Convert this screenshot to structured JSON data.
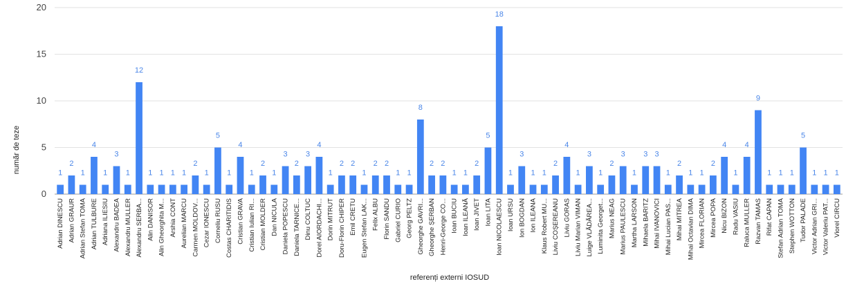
{
  "chart_data": {
    "type": "bar",
    "title": "",
    "xlabel": "referenți externi IOSUD",
    "ylabel": "număr de teze",
    "ylim": [
      0,
      20
    ],
    "yticks": [
      0,
      5,
      10,
      15,
      20
    ],
    "grid": true,
    "legend": "none",
    "bar_color": "#4285f4",
    "label_color": "#4a86e8",
    "categories": [
      "Adrian DINESCU",
      "Adrian GRAUR",
      "Adrian Stefan TOMA",
      "Adrian TULBURE",
      "Adriana ILIESIU",
      "Alexandru BADEA",
      "Alexandru MULLER",
      "Alexandru SERBA...",
      "Alin DANISOR",
      "Alin Gheorghita M...",
      "Arshia CONT",
      "Aurelian MARCU",
      "Carmen MOLDOV...",
      "Cezar IONESCU",
      "Corneliu RUSU",
      "Costas CHARITIDIS",
      "Cristian GRAVA",
      "Cristian Iulian RI...",
      "Cristian MOLDER",
      "Dan NICULA",
      "Daniela POPESCU",
      "Daniela TARNICE...",
      "Dinu COLTUC",
      "Dorel AIORDACHI...",
      "Dorin MITRUT",
      "Doru-Florin CHIPER",
      "Emil CRETU",
      "Eugen Stefan LAK...",
      "Felix ALBU",
      "Florin SANDU",
      "Gabriel CURIO",
      "Georg PELTZ",
      "Gheorghe GAVRI...",
      "Gheorghe ȘERBAN",
      "Henri-George CO...",
      "Ioan BUCIU",
      "Ioan ILEANĂ",
      "Ioan JIVET",
      "Ioan LITA",
      "Ioan NICOLAESCU",
      "Ioan URSU",
      "Ion BOGDAN",
      "Ion ILEANA",
      "Klaus Robert MU...",
      "Liviu COȘEREANU",
      "Liviu GORAS",
      "Liviu Marian VIMAN",
      "Luige VLĂDĂREA...",
      "Luminita Georget...",
      "Marius NEAG",
      "Marius PAULESCU",
      "Martha LARSON",
      "Mihaela BARITZ",
      "Mihai IVANOVICI",
      "Mihai Lucian PAS...",
      "Mihai MITREA",
      "Mihai Octavian DIMA",
      "Mircea FLORIAN",
      "Mircea POPA",
      "Nicu BIZON",
      "Radu VASIU",
      "Raluca MULLER",
      "Razvan TAMAS",
      "Rifat CAPAN",
      "Stefan Adrian TOMA",
      "Stephen WOTTON",
      "Tudor PALADE",
      "Victor Adrian GRI...",
      "Victor Valeriu PAT...",
      "Viorel CIRCU"
    ],
    "values": [
      1,
      2,
      1,
      4,
      1,
      3,
      1,
      12,
      1,
      1,
      1,
      1,
      2,
      1,
      5,
      1,
      4,
      1,
      2,
      1,
      3,
      2,
      3,
      4,
      1,
      2,
      2,
      1,
      2,
      2,
      1,
      1,
      8,
      2,
      2,
      1,
      1,
      2,
      5,
      18,
      1,
      3,
      1,
      1,
      2,
      4,
      1,
      3,
      1,
      2,
      3,
      1,
      3,
      3,
      1,
      2,
      1,
      1,
      2,
      4,
      1,
      4,
      9,
      1,
      1,
      1,
      5,
      1,
      1,
      1
    ]
  }
}
